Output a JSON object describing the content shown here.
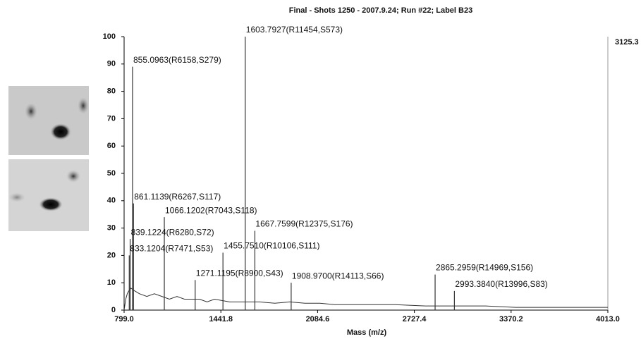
{
  "chart_data": {
    "type": "line",
    "title": "Final - Shots 1250 - 2007.9.24; Run #22; Label B23",
    "x_label": "Mass (m/z)",
    "annotation": "3125.3",
    "color": "#333333",
    "xlim": [
      799.0,
      4013.0
    ],
    "xticks": [
      {
        "value": 799,
        "label": "799.0"
      },
      1441.8,
      2084.6,
      2727.4,
      3370.2,
      {
        "value": 4013,
        "label": "4013.0"
      }
    ],
    "ylim": [
      0,
      100
    ],
    "yticks": [
      0,
      10,
      20,
      30,
      40,
      50,
      60,
      70,
      80,
      90,
      100
    ],
    "x": [
      799,
      810,
      820,
      830,
      845,
      870,
      900,
      950,
      1000,
      1050,
      1100,
      1150,
      1200,
      1300,
      1350,
      1400,
      1500,
      1550,
      1650,
      1700,
      1800,
      1900,
      2000,
      2100,
      2200,
      2400,
      2600,
      2800,
      3000,
      3200,
      3400,
      3600,
      3800,
      4013
    ],
    "values": [
      0,
      4,
      6,
      7,
      8,
      7,
      6,
      5,
      6,
      5,
      4,
      5,
      4,
      4,
      3,
      4,
      3,
      3,
      3,
      3,
      2.5,
      3,
      2.5,
      2.5,
      2,
      2,
      2,
      1.5,
      1.5,
      1.5,
      1,
      1,
      1,
      1
    ],
    "peaks": [
      {
        "label": "855.0963(R6158,S279)",
        "x": 855.0963,
        "y": 89
      },
      {
        "label": "861.1139(R6267,S117)",
        "x": 861.1139,
        "y": 39
      },
      {
        "label": "1066.1202(R7043,S118)",
        "x": 1066.1202,
        "y": 34
      },
      {
        "label": "839.1224(R6280,S72)",
        "x": 839.1224,
        "y": 26
      },
      {
        "label": "833.1204(R7471,S53)",
        "x": 833.1204,
        "y": 20
      },
      {
        "label": "1603.7927(R11454,S573)",
        "x": 1603.7927,
        "y": 100
      },
      {
        "label": "1667.7599(R12375,S176)",
        "x": 1667.7599,
        "y": 29
      },
      {
        "label": "1455.7510(R10106,S111)",
        "x": 1455.751,
        "y": 21
      },
      {
        "label": "1271.1195(R8900,S43)",
        "x": 1271.1195,
        "y": 11
      },
      {
        "label": "1908.9700(R14113,S66)",
        "x": 1908.97,
        "y": 10
      },
      {
        "label": "2865.2959(R14969,S156)",
        "x": 2865.2959,
        "y": 13
      },
      {
        "label": "2993.3840(R13996,S83)",
        "x": 2993.384,
        "y": 7
      }
    ]
  }
}
